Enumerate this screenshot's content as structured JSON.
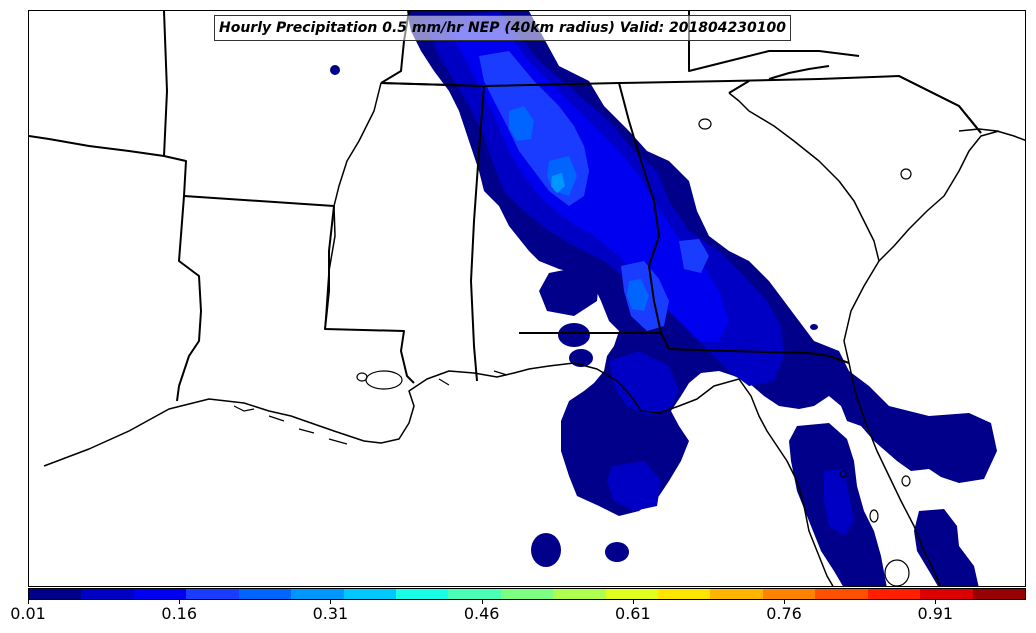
{
  "title": "Hourly Precipitation 0.5 mm/hr NEP (40km radius) Valid: 201804230100",
  "colorbar": {
    "colors": [
      "#00008b",
      "#0000c4",
      "#0000f0",
      "#1a3cff",
      "#0064ff",
      "#0096ff",
      "#00c8ff",
      "#19ffe6",
      "#4bffb4",
      "#7dff82",
      "#afff50",
      "#e1ff1e",
      "#ffe600",
      "#ffb400",
      "#ff8200",
      "#ff5000",
      "#ff1e00",
      "#dc0000",
      "#960000"
    ],
    "tick_labels": [
      "0.01",
      "0.16",
      "0.31",
      "0.46",
      "0.61",
      "0.76",
      "0.91"
    ]
  },
  "chart_data": {
    "type": "heatmap",
    "title": "Hourly Precipitation 0.5 mm/hr NEP (40km radius) Valid: 201804230100",
    "color_range": [
      0.01,
      1.0
    ],
    "colorbar_ticks": [
      0.01,
      0.16,
      0.31,
      0.46,
      0.61,
      0.76,
      0.91
    ]
  }
}
